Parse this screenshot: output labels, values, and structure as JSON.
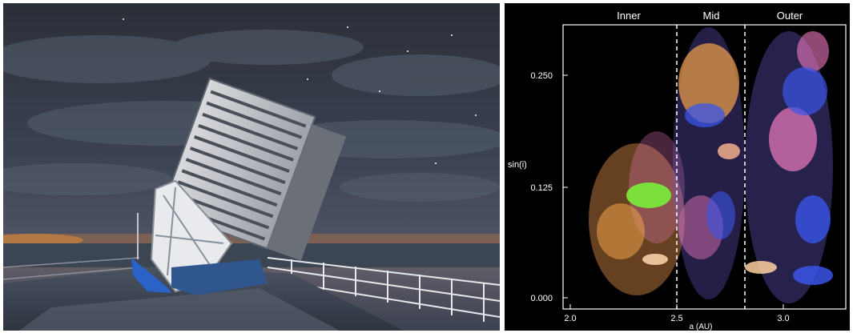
{
  "photo": {
    "subject": "telescope-enclosure-at-night",
    "colors": {
      "sky_top": "#2a2f3a",
      "sky_mid": "#3e4656",
      "horizon": "#b36a3a",
      "structure": "#e8e8ea",
      "accent_blue": "#2a62c8"
    }
  },
  "plot": {
    "region_labels": [
      "Inner",
      "Mid",
      "Outer"
    ],
    "y_axis_label": "sin(i)",
    "x_axis_label": "a (AU)",
    "y_ticks": [
      "0.250",
      "0.125",
      "0.000"
    ],
    "x_ticks": [
      "2.0",
      "2.5",
      "3.0"
    ],
    "colors": {
      "background": "#000000",
      "frame": "#ffffff",
      "orange": "#f2a24a",
      "pink": "#f07ac0",
      "blue": "#3a55e8",
      "green": "#7af03a"
    }
  }
}
